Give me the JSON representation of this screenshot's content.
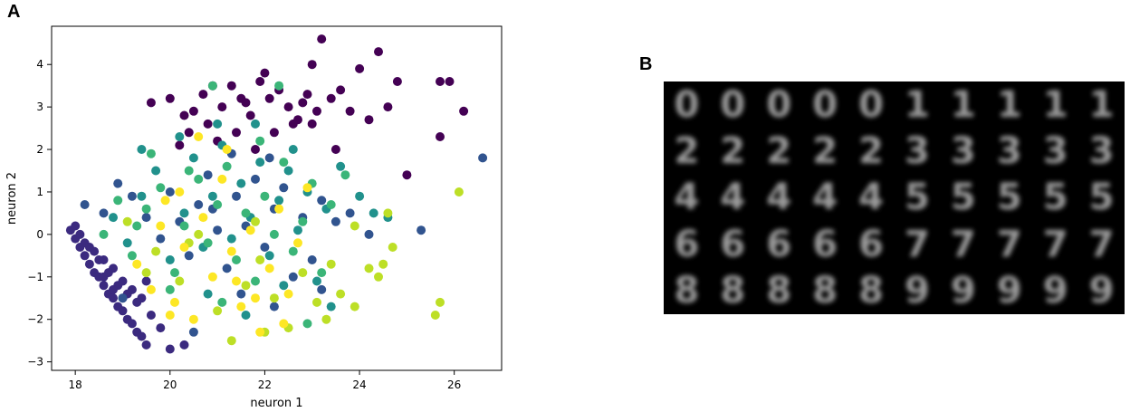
{
  "panel_a": {
    "letter": "A"
  },
  "panel_b": {
    "letter": "B",
    "digit_grid": [
      [
        "0",
        "0",
        "0",
        "0",
        "0",
        "1",
        "1",
        "1",
        "1",
        "1"
      ],
      [
        "2",
        "2",
        "2",
        "2",
        "2",
        "3",
        "3",
        "3",
        "3",
        "3"
      ],
      [
        "4",
        "4",
        "4",
        "4",
        "4",
        "5",
        "5",
        "5",
        "5",
        "5"
      ],
      [
        "6",
        "6",
        "6",
        "6",
        "6",
        "7",
        "7",
        "7",
        "7",
        "7"
      ],
      [
        "8",
        "8",
        "8",
        "8",
        "8",
        "9",
        "9",
        "9",
        "9",
        "9"
      ]
    ]
  },
  "chart_data": {
    "type": "scatter",
    "title": "",
    "xlabel": "neuron 1",
    "ylabel": "neuron 2",
    "xlim": [
      17.5,
      27.0
    ],
    "ylim": [
      -3.2,
      4.9
    ],
    "xticks": [
      18,
      20,
      22,
      24,
      26
    ],
    "yticks": [
      -3,
      -2,
      -1,
      0,
      1,
      2,
      3,
      4
    ],
    "grid": false,
    "legend": "none",
    "colors": {
      "purple": "#440154",
      "indigo": "#3b2a7f",
      "blue": "#31548f",
      "teal": "#21918c",
      "green": "#3bb578",
      "lime": "#bddf26",
      "yellow": "#fde725"
    },
    "series": [
      {
        "color": "purple",
        "points": [
          [
            19.6,
            3.1
          ],
          [
            20.0,
            3.2
          ],
          [
            20.3,
            2.8
          ],
          [
            20.5,
            2.9
          ],
          [
            20.7,
            3.3
          ],
          [
            20.9,
            3.5
          ],
          [
            21.1,
            3.0
          ],
          [
            21.3,
            3.5
          ],
          [
            21.5,
            3.2
          ],
          [
            21.7,
            2.8
          ],
          [
            21.9,
            3.6
          ],
          [
            22.1,
            3.2
          ],
          [
            22.3,
            3.4
          ],
          [
            22.5,
            3.0
          ],
          [
            22.7,
            2.7
          ],
          [
            22.9,
            3.3
          ],
          [
            23.1,
            2.9
          ],
          [
            23.2,
            4.6
          ],
          [
            23.0,
            4.0
          ],
          [
            23.4,
            3.2
          ],
          [
            23.6,
            3.4
          ],
          [
            23.8,
            2.9
          ],
          [
            24.0,
            3.9
          ],
          [
            24.2,
            2.7
          ],
          [
            24.4,
            4.3
          ],
          [
            24.6,
            3.0
          ],
          [
            24.8,
            3.6
          ],
          [
            25.0,
            1.4
          ],
          [
            25.7,
            3.6
          ],
          [
            25.9,
            3.6
          ],
          [
            26.2,
            2.9
          ],
          [
            25.7,
            2.3
          ],
          [
            22.0,
            3.8
          ],
          [
            21.6,
            3.1
          ],
          [
            20.8,
            2.6
          ],
          [
            21.4,
            2.4
          ],
          [
            22.6,
            2.6
          ],
          [
            23.5,
            2.0
          ],
          [
            21.0,
            2.2
          ],
          [
            22.2,
            2.4
          ],
          [
            20.4,
            2.4
          ],
          [
            23.0,
            2.6
          ],
          [
            21.8,
            2.0
          ],
          [
            22.8,
            3.1
          ],
          [
            20.2,
            2.1
          ]
        ]
      },
      {
        "color": "indigo",
        "points": [
          [
            17.9,
            0.1
          ],
          [
            18.0,
            -0.1
          ],
          [
            18.1,
            -0.3
          ],
          [
            18.2,
            -0.5
          ],
          [
            18.3,
            -0.7
          ],
          [
            18.4,
            -0.9
          ],
          [
            18.5,
            -1.0
          ],
          [
            18.6,
            -1.2
          ],
          [
            18.7,
            -1.4
          ],
          [
            18.8,
            -1.5
          ],
          [
            18.9,
            -1.7
          ],
          [
            19.0,
            -1.8
          ],
          [
            19.1,
            -2.0
          ],
          [
            19.2,
            -2.1
          ],
          [
            19.3,
            -2.3
          ],
          [
            19.4,
            -2.4
          ],
          [
            19.5,
            -2.6
          ],
          [
            18.0,
            0.2
          ],
          [
            18.2,
            -0.2
          ],
          [
            18.4,
            -0.4
          ],
          [
            18.6,
            -0.6
          ],
          [
            18.8,
            -0.8
          ],
          [
            19.0,
            -1.1
          ],
          [
            19.2,
            -1.3
          ],
          [
            19.4,
            -1.5
          ],
          [
            19.6,
            -1.9
          ],
          [
            19.8,
            -2.2
          ],
          [
            20.0,
            -2.7
          ],
          [
            20.3,
            -2.6
          ],
          [
            18.1,
            0.0
          ],
          [
            18.3,
            -0.3
          ],
          [
            18.5,
            -0.6
          ],
          [
            18.7,
            -0.9
          ],
          [
            18.9,
            -1.2
          ],
          [
            19.1,
            -1.4
          ],
          [
            19.3,
            -1.6
          ],
          [
            19.5,
            -1.1
          ],
          [
            18.6,
            -1.0
          ],
          [
            18.8,
            -1.3
          ],
          [
            19.0,
            -1.5
          ]
        ]
      },
      {
        "color": "blue",
        "points": [
          [
            18.2,
            0.7
          ],
          [
            18.6,
            0.5
          ],
          [
            18.9,
            1.2
          ],
          [
            19.2,
            0.9
          ],
          [
            19.5,
            0.4
          ],
          [
            19.8,
            -0.1
          ],
          [
            20.0,
            1.0
          ],
          [
            20.2,
            0.3
          ],
          [
            20.4,
            -0.5
          ],
          [
            20.6,
            0.7
          ],
          [
            20.8,
            1.4
          ],
          [
            21.0,
            0.1
          ],
          [
            21.2,
            -0.8
          ],
          [
            21.4,
            0.9
          ],
          [
            21.6,
            0.2
          ],
          [
            21.8,
            1.3
          ],
          [
            22.0,
            -0.3
          ],
          [
            22.2,
            0.6
          ],
          [
            22.4,
            1.1
          ],
          [
            22.6,
            -1.0
          ],
          [
            22.8,
            0.4
          ],
          [
            23.0,
            -0.6
          ],
          [
            23.2,
            0.8
          ],
          [
            23.5,
            0.3
          ],
          [
            23.8,
            0.5
          ],
          [
            24.2,
            0.0
          ],
          [
            25.3,
            0.1
          ],
          [
            26.6,
            1.8
          ],
          [
            19.0,
            -1.5
          ],
          [
            21.5,
            -1.4
          ],
          [
            22.2,
            -1.7
          ],
          [
            20.5,
            -2.3
          ],
          [
            21.3,
            1.9
          ],
          [
            22.1,
            1.8
          ],
          [
            23.2,
            -1.3
          ],
          [
            20.9,
            0.6
          ]
        ]
      },
      {
        "color": "teal",
        "points": [
          [
            18.8,
            0.4
          ],
          [
            19.1,
            -0.2
          ],
          [
            19.4,
            0.9
          ],
          [
            19.7,
            1.5
          ],
          [
            20.0,
            -0.6
          ],
          [
            20.3,
            0.5
          ],
          [
            20.5,
            1.8
          ],
          [
            20.7,
            -0.3
          ],
          [
            20.9,
            0.9
          ],
          [
            21.1,
            2.1
          ],
          [
            21.3,
            -0.1
          ],
          [
            21.5,
            1.2
          ],
          [
            21.7,
            0.4
          ],
          [
            21.9,
            1.7
          ],
          [
            22.1,
            -0.5
          ],
          [
            22.3,
            0.8
          ],
          [
            22.5,
            1.5
          ],
          [
            22.7,
            0.1
          ],
          [
            22.9,
            1.0
          ],
          [
            23.1,
            -1.1
          ],
          [
            23.3,
            0.6
          ],
          [
            23.6,
            1.6
          ],
          [
            24.0,
            0.9
          ],
          [
            24.3,
            0.5
          ],
          [
            24.6,
            0.4
          ],
          [
            20.2,
            2.3
          ],
          [
            21.0,
            2.6
          ],
          [
            21.8,
            2.6
          ],
          [
            22.6,
            2.0
          ],
          [
            19.4,
            2.0
          ],
          [
            20.8,
            -1.4
          ],
          [
            21.6,
            -1.9
          ],
          [
            22.4,
            -1.2
          ],
          [
            23.4,
            -1.7
          ]
        ]
      },
      {
        "color": "green",
        "points": [
          [
            18.6,
            0.0
          ],
          [
            18.9,
            0.8
          ],
          [
            19.2,
            -0.5
          ],
          [
            19.5,
            0.6
          ],
          [
            19.8,
            1.1
          ],
          [
            20.1,
            -0.9
          ],
          [
            20.3,
            0.2
          ],
          [
            20.6,
            1.3
          ],
          [
            20.8,
            -0.2
          ],
          [
            21.0,
            0.7
          ],
          [
            21.2,
            1.6
          ],
          [
            21.4,
            -0.6
          ],
          [
            21.6,
            0.5
          ],
          [
            21.8,
            -1.1
          ],
          [
            22.0,
            0.9
          ],
          [
            22.2,
            0.0
          ],
          [
            22.4,
            1.7
          ],
          [
            22.6,
            -0.4
          ],
          [
            22.8,
            0.3
          ],
          [
            23.0,
            1.2
          ],
          [
            23.2,
            -0.9
          ],
          [
            23.4,
            0.7
          ],
          [
            23.7,
            1.4
          ],
          [
            19.6,
            1.9
          ],
          [
            20.9,
            3.5
          ],
          [
            22.3,
            3.5
          ],
          [
            21.9,
            2.2
          ],
          [
            20.4,
            1.5
          ],
          [
            21.1,
            -1.6
          ],
          [
            22.9,
            -2.1
          ],
          [
            20.0,
            -1.3
          ],
          [
            19.3,
            0.2
          ]
        ]
      },
      {
        "color": "lime",
        "points": [
          [
            19.1,
            0.3
          ],
          [
            19.7,
            -0.4
          ],
          [
            20.2,
            -1.1
          ],
          [
            20.6,
            0.0
          ],
          [
            21.0,
            -1.8
          ],
          [
            21.3,
            -2.5
          ],
          [
            21.6,
            -1.2
          ],
          [
            21.9,
            -0.6
          ],
          [
            22.2,
            -1.5
          ],
          [
            22.5,
            -2.2
          ],
          [
            22.8,
            -0.9
          ],
          [
            23.1,
            -1.6
          ],
          [
            23.4,
            -0.7
          ],
          [
            23.6,
            -1.4
          ],
          [
            23.9,
            -1.7
          ],
          [
            24.2,
            -0.8
          ],
          [
            24.5,
            -0.7
          ],
          [
            24.7,
            -0.3
          ],
          [
            25.7,
            -1.6
          ],
          [
            25.6,
            -1.9
          ],
          [
            26.1,
            1.0
          ],
          [
            23.9,
            0.2
          ],
          [
            24.6,
            0.5
          ],
          [
            20.4,
            -0.2
          ],
          [
            21.8,
            0.3
          ],
          [
            19.5,
            -0.9
          ],
          [
            22.0,
            -2.3
          ],
          [
            23.3,
            -2.0
          ],
          [
            24.4,
            -1.0
          ]
        ]
      },
      {
        "color": "yellow",
        "points": [
          [
            19.3,
            -0.7
          ],
          [
            19.6,
            -1.3
          ],
          [
            19.9,
            0.8
          ],
          [
            20.1,
            -1.6
          ],
          [
            20.3,
            -0.3
          ],
          [
            20.5,
            -2.0
          ],
          [
            20.7,
            0.4
          ],
          [
            20.9,
            -1.0
          ],
          [
            21.1,
            1.3
          ],
          [
            21.3,
            -0.4
          ],
          [
            21.5,
            -1.7
          ],
          [
            21.7,
            0.1
          ],
          [
            21.9,
            -2.3
          ],
          [
            22.1,
            -0.8
          ],
          [
            22.3,
            0.6
          ],
          [
            22.5,
            -1.4
          ],
          [
            22.7,
            -0.2
          ],
          [
            22.9,
            1.1
          ],
          [
            21.2,
            2.0
          ],
          [
            20.6,
            2.3
          ],
          [
            20.2,
            1.0
          ],
          [
            21.8,
            -1.5
          ],
          [
            20.0,
            -1.9
          ],
          [
            21.4,
            -1.1
          ],
          [
            22.4,
            -2.1
          ],
          [
            19.8,
            0.2
          ]
        ]
      }
    ]
  }
}
